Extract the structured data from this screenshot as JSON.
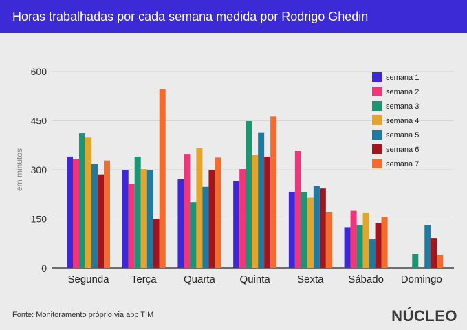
{
  "colors": {
    "title_bg": "#3b2ad6",
    "background": "#ebebeb",
    "grid": "#d6d6d6",
    "axis": "#222222"
  },
  "header": {
    "title": "Horas trabalhadas por cada semana medida por Rodrigo Ghedin"
  },
  "footer": {
    "source": "Fonte: Monitoramento próprio via app TIM",
    "logo": "NÚCLEO"
  },
  "chart_data": {
    "type": "bar",
    "title": "Horas trabalhadas por cada semana medida por Rodrigo Ghedin",
    "xlabel": "",
    "ylabel": "em minutos",
    "ylim": [
      0,
      600
    ],
    "yticks": [
      0,
      150,
      300,
      450,
      600
    ],
    "grid": true,
    "legend_position": "top-right",
    "categories": [
      "Segunda",
      "Terça",
      "Quarta",
      "Quinta",
      "Sexta",
      "Sábado",
      "Domingo"
    ],
    "series": [
      {
        "name": "semana 1",
        "color": "#3d27d6",
        "values": [
          340,
          300,
          271,
          265,
          233,
          125,
          0
        ]
      },
      {
        "name": "semana 2",
        "color": "#f0367a",
        "values": [
          333,
          256,
          348,
          302,
          358,
          175,
          0
        ]
      },
      {
        "name": "semana 3",
        "color": "#1c9672",
        "values": [
          411,
          340,
          201,
          449,
          231,
          130,
          44
        ]
      },
      {
        "name": "semana 4",
        "color": "#e3a52a",
        "values": [
          398,
          302,
          365,
          345,
          215,
          168,
          0
        ]
      },
      {
        "name": "semana 5",
        "color": "#1e7aa0",
        "values": [
          318,
          299,
          248,
          414,
          250,
          88,
          132
        ]
      },
      {
        "name": "semana 6",
        "color": "#a3151e",
        "values": [
          286,
          151,
          299,
          340,
          243,
          138,
          92
        ]
      },
      {
        "name": "semana 7",
        "color": "#f36b2d",
        "values": [
          328,
          546,
          337,
          463,
          170,
          157,
          40
        ]
      }
    ]
  }
}
